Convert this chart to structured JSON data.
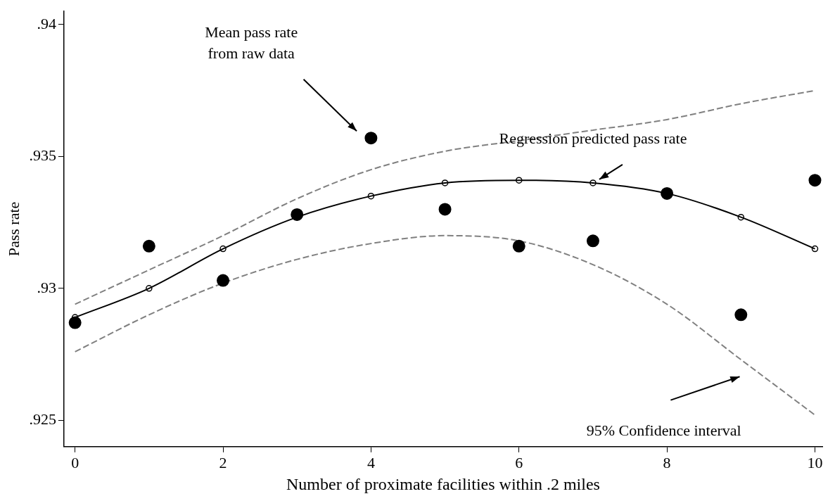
{
  "chart_data": {
    "type": "line",
    "xlabel": "Number of proximate facilities within .2 miles",
    "ylabel": "Pass rate",
    "x": [
      0,
      1,
      2,
      3,
      4,
      5,
      6,
      7,
      8,
      9,
      10
    ],
    "series": [
      {
        "type": "scatter",
        "color": "#000000",
        "marker": "circle",
        "values": [
          0.9287,
          0.9316,
          0.9303,
          0.9328,
          0.9357,
          0.933,
          0.9316,
          0.9318,
          0.9336,
          0.929,
          0.9341
        ]
      },
      {
        "type": "line",
        "color": "#000000",
        "marker": "circle",
        "line_style": "solid",
        "values": [
          0.9289,
          0.93,
          0.9315,
          0.9327,
          0.9335,
          0.934,
          0.9341,
          0.934,
          0.9336,
          0.9327,
          0.9315
        ]
      },
      {
        "type": "line",
        "color": "#808080",
        "marker": "none",
        "line_style": "dashed",
        "values": [
          0.9294,
          0.9307,
          0.932,
          0.9334,
          0.9345,
          0.9352,
          0.9356,
          0.936,
          0.9364,
          0.937,
          0.9375
        ]
      },
      {
        "type": "line",
        "color": "#808080",
        "marker": "none",
        "line_style": "dashed",
        "values": [
          0.9276,
          0.929,
          0.9302,
          0.9311,
          0.9317,
          0.932,
          0.9318,
          0.9309,
          0.9294,
          0.9273,
          0.9252
        ]
      }
    ],
    "xlim": [
      -0.15,
      10.1
    ],
    "xticks": [
      0,
      2,
      4,
      6,
      8,
      10
    ],
    "ylim": [
      0.924,
      0.9405
    ],
    "yticks": [
      {
        "value": 0.925,
        "label": ".925"
      },
      {
        "value": 0.93,
        "label": ".93"
      },
      {
        "value": 0.935,
        "label": ".935"
      },
      {
        "value": 0.94,
        "label": ".94"
      }
    ],
    "grid": false,
    "legend": false,
    "annotations": [
      "Mean pass rate\nfrom raw data",
      {
        "text": "Regression predicted pass rate",
        "x": 7,
        "y": 0.934
      },
      "95% Confidence interval"
    ]
  }
}
